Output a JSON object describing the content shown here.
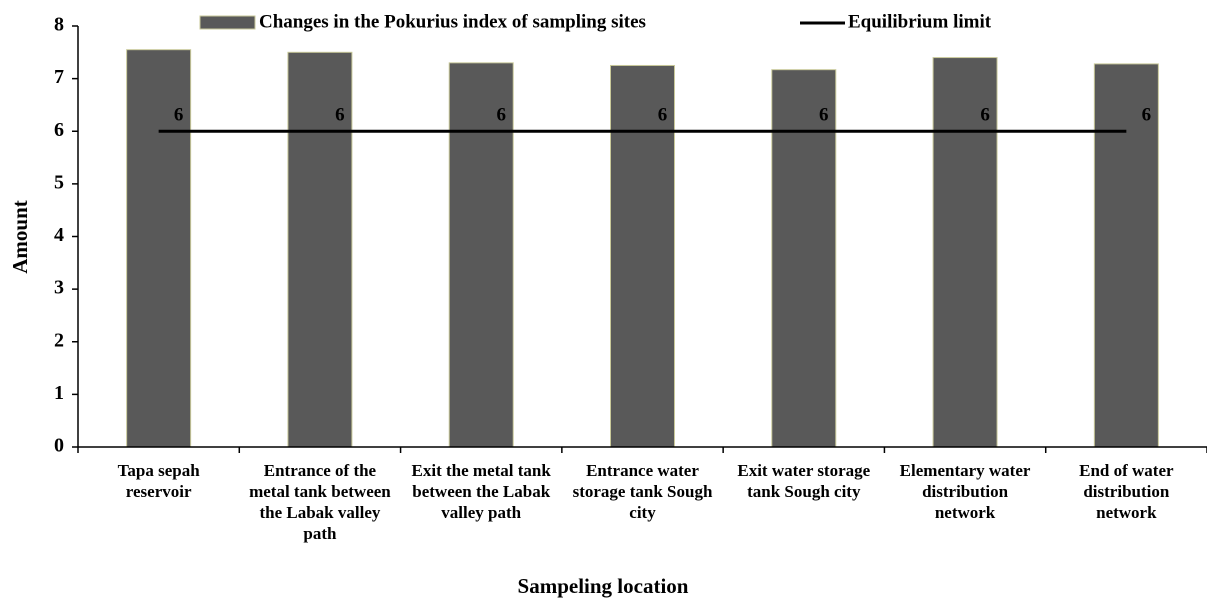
{
  "chart_data": {
    "type": "bar",
    "x_label": "Sampeling location",
    "y_label": "Amount",
    "categories": [
      "Tapa sepah reservoir",
      "Entrance of the metal tank between the Labak valley path",
      "Exit the metal tank between the Labak valley path",
      "Entrance water storage tank Sough city",
      "Exit water storage tank Sough city",
      "Elementary water distribution network",
      "End of water distribution network"
    ],
    "series": [
      {
        "name": "Changes in the Pokurius index of sampling sites",
        "type": "bar",
        "color": "#595959",
        "values": [
          7.55,
          7.5,
          7.3,
          7.25,
          7.17,
          7.4,
          7.28
        ]
      },
      {
        "name": "Equilibrium limit",
        "type": "line",
        "color": "#000000",
        "values": [
          6,
          6,
          6,
          6,
          6,
          6,
          6
        ]
      }
    ],
    "ylim": [
      0,
      8
    ],
    "yticks": [
      0,
      1,
      2,
      3,
      4,
      5,
      6,
      7,
      8
    ],
    "legend": "top"
  }
}
